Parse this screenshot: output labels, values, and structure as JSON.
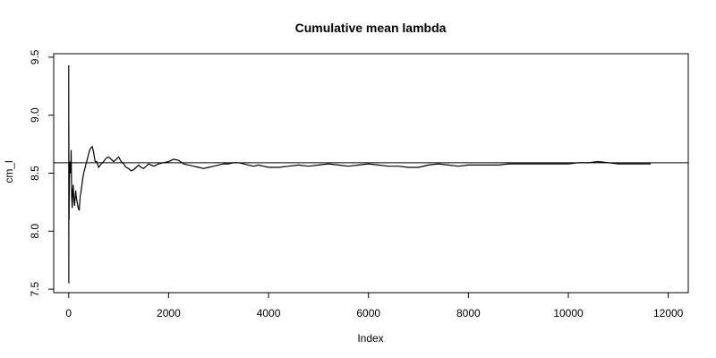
{
  "chart_data": {
    "type": "line",
    "title": "Cumulative mean lambda",
    "xlabel": "Index",
    "ylabel": "cm_l",
    "xlim": [
      -300,
      12400
    ],
    "ylim": [
      7.47,
      9.53
    ],
    "x_ticks": [
      0,
      2000,
      4000,
      6000,
      8000,
      10000,
      12000
    ],
    "x_tick_labels": [
      "0",
      "2000",
      "4000",
      "6000",
      "8000",
      "10000",
      "12000"
    ],
    "y_ticks": [
      7.5,
      8.0,
      8.5,
      9.0,
      9.5
    ],
    "y_tick_labels": [
      "7.5",
      "8.0",
      "8.5",
      "9.0",
      "9.5"
    ],
    "grid": false,
    "reference_line": {
      "y": 8.59,
      "color": "#000000"
    },
    "series": [
      {
        "color": "#000000",
        "x": [
          1,
          2,
          3,
          4,
          6,
          8,
          10,
          15,
          20,
          30,
          40,
          50,
          60,
          70,
          80,
          90,
          100,
          110,
          120,
          130,
          140,
          150,
          170,
          190,
          210,
          230,
          250,
          280,
          300,
          330,
          360,
          390,
          420,
          450,
          470,
          490,
          510,
          530,
          560,
          600,
          650,
          700,
          750,
          800,
          850,
          900,
          950,
          1000,
          1050,
          1100,
          1150,
          1200,
          1250,
          1300,
          1350,
          1400,
          1450,
          1500,
          1550,
          1600,
          1650,
          1700,
          1800,
          1900,
          2000,
          2100,
          2200,
          2300,
          2400,
          2500,
          2600,
          2700,
          2800,
          2900,
          3000,
          3100,
          3200,
          3300,
          3400,
          3500,
          3600,
          3700,
          3800,
          3900,
          4000,
          4200,
          4400,
          4600,
          4800,
          5000,
          5200,
          5400,
          5600,
          5800,
          6000,
          6200,
          6400,
          6600,
          6800,
          7000,
          7200,
          7400,
          7600,
          7800,
          8000,
          8200,
          8400,
          8600,
          8800,
          9000,
          9200,
          9400,
          9600,
          9800,
          10000,
          10200,
          10400,
          10600,
          10800,
          11000,
          11200,
          11400,
          11650
        ],
        "y": [
          9.43,
          7.55,
          8.9,
          8.2,
          8.3,
          8.1,
          8.3,
          8.45,
          8.55,
          8.6,
          8.5,
          8.7,
          8.3,
          8.2,
          8.35,
          8.4,
          8.3,
          8.25,
          8.22,
          8.3,
          8.35,
          8.3,
          8.25,
          8.2,
          8.18,
          8.3,
          8.35,
          8.45,
          8.5,
          8.55,
          8.6,
          8.65,
          8.7,
          8.72,
          8.73,
          8.7,
          8.65,
          8.6,
          8.6,
          8.55,
          8.58,
          8.6,
          8.63,
          8.64,
          8.62,
          8.6,
          8.62,
          8.64,
          8.6,
          8.58,
          8.55,
          8.54,
          8.52,
          8.53,
          8.55,
          8.57,
          8.55,
          8.54,
          8.56,
          8.58,
          8.57,
          8.56,
          8.58,
          8.59,
          8.6,
          8.62,
          8.61,
          8.58,
          8.57,
          8.56,
          8.55,
          8.54,
          8.55,
          8.56,
          8.57,
          8.58,
          8.58,
          8.59,
          8.59,
          8.58,
          8.57,
          8.56,
          8.57,
          8.56,
          8.55,
          8.55,
          8.56,
          8.57,
          8.56,
          8.57,
          8.58,
          8.57,
          8.56,
          8.57,
          8.58,
          8.57,
          8.56,
          8.56,
          8.55,
          8.55,
          8.57,
          8.58,
          8.57,
          8.56,
          8.57,
          8.57,
          8.57,
          8.57,
          8.58,
          8.58,
          8.58,
          8.58,
          8.58,
          8.58,
          8.58,
          8.59,
          8.59,
          8.6,
          8.59,
          8.58,
          8.58,
          8.58,
          8.58
        ]
      }
    ]
  }
}
